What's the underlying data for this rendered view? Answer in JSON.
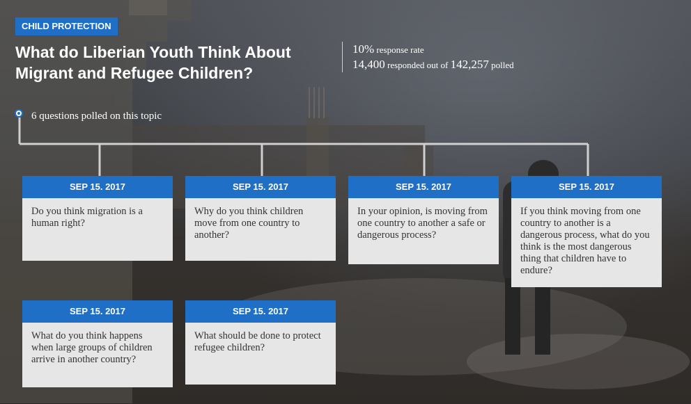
{
  "header": {
    "category_badge": "CHILD PROTECTION",
    "title": "What do Liberian Youth Think About Migrant and Refugee Children?",
    "questions_polled": "6 questions polled on this topic"
  },
  "stats": {
    "response_rate_value": "10%",
    "response_rate_label": "response rate",
    "responded_value": "14,400",
    "responded_label": "responded out of",
    "polled_value": "142,257",
    "polled_label": "polled"
  },
  "colors": {
    "accent": "#1f6fc7",
    "card_background": "#e6e6e6",
    "tree_line": "#d0d0d0"
  },
  "questions": [
    {
      "date": "SEP 15. 2017",
      "text": "Do you think migration is a human right?"
    },
    {
      "date": "SEP 15. 2017",
      "text": "Why do you think children move from one country to another?"
    },
    {
      "date": "SEP 15. 2017",
      "text": "In your opinion, is moving from one country to another a safe or dangerous process?"
    },
    {
      "date": "SEP 15. 2017",
      "text": "If you think moving from one country to another is a dangerous process, what do you think is the most dangerous thing that children have to endure?"
    },
    {
      "date": "SEP 15. 2017",
      "text": "What do you think happens when large groups of children arrive in another country?"
    },
    {
      "date": "SEP 15. 2017",
      "text": "What should be done to protect refugee children?"
    }
  ]
}
